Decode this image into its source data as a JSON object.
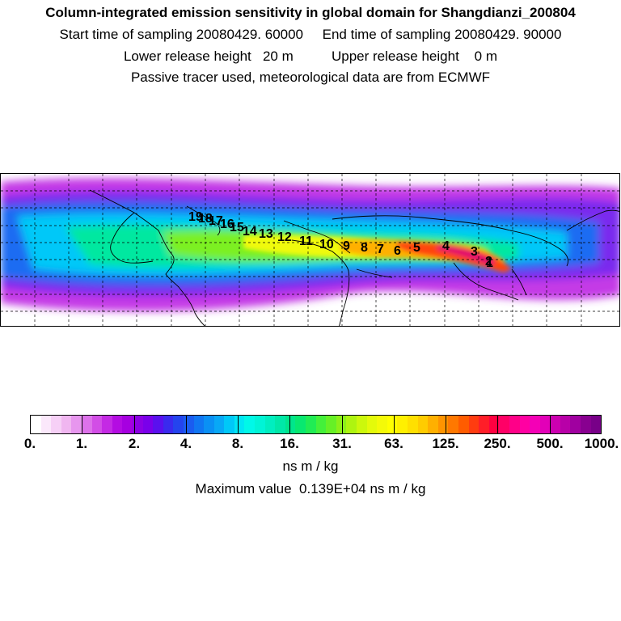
{
  "header": {
    "title": "Column-integrated emission sensitivity in global domain for Shangdianzi_200804",
    "sampling_line": "Start time of sampling 20080429. 60000     End time of sampling 20080429. 90000",
    "release_line": "Lower release height   20 m          Upper release height    0 m",
    "tracer_line": "Passive tracer used, meteorological data are from ECMWF"
  },
  "track_labels": [
    "1",
    "2",
    "3",
    "4",
    "5",
    "6",
    "7",
    "8",
    "9",
    "10",
    "11",
    "12",
    "13",
    "14",
    "15",
    "16",
    "17",
    "18",
    "19"
  ],
  "colorbar": {
    "labels": [
      "0.",
      "1.",
      "2.",
      "4.",
      "8.",
      "16.",
      "31.",
      "63.",
      "125.",
      "250.",
      "500.",
      "1000."
    ],
    "colors": [
      "#ffffff",
      "#fbe8fb",
      "#f6d0f6",
      "#f0b6f0",
      "#e796ee",
      "#dd72ea",
      "#d24ee6",
      "#c42ae4",
      "#b40ce2",
      "#a600e0",
      "#8c00e4",
      "#7a00ea",
      "#5a10ee",
      "#3a2aee",
      "#2444ee",
      "#1a5cf0",
      "#1076f2",
      "#0a90f4",
      "#08a8f6",
      "#00c8f8",
      "#00e6f4",
      "#00f8e8",
      "#00f4d6",
      "#00eec0",
      "#00e8a8",
      "#00e68c",
      "#08e870",
      "#20ec54",
      "#44f03a",
      "#66f026",
      "#8cf018",
      "#aef410",
      "#ccf80c",
      "#e4fa0a",
      "#f4fa08",
      "#ffff00",
      "#fff000",
      "#ffe000",
      "#ffcc00",
      "#ffb000",
      "#ff9400",
      "#ff7800",
      "#ff5c00",
      "#ff3c10",
      "#ff1e28",
      "#ff0040",
      "#ff0066",
      "#ff0088",
      "#ff00a2",
      "#f400b6",
      "#e200b8",
      "#cc00b0",
      "#b800a8",
      "#a000a0",
      "#880090",
      "#780088"
    ]
  },
  "units": "ns m / kg",
  "max_value_text": "Maximum value  0.139E+04 ns m / kg"
}
